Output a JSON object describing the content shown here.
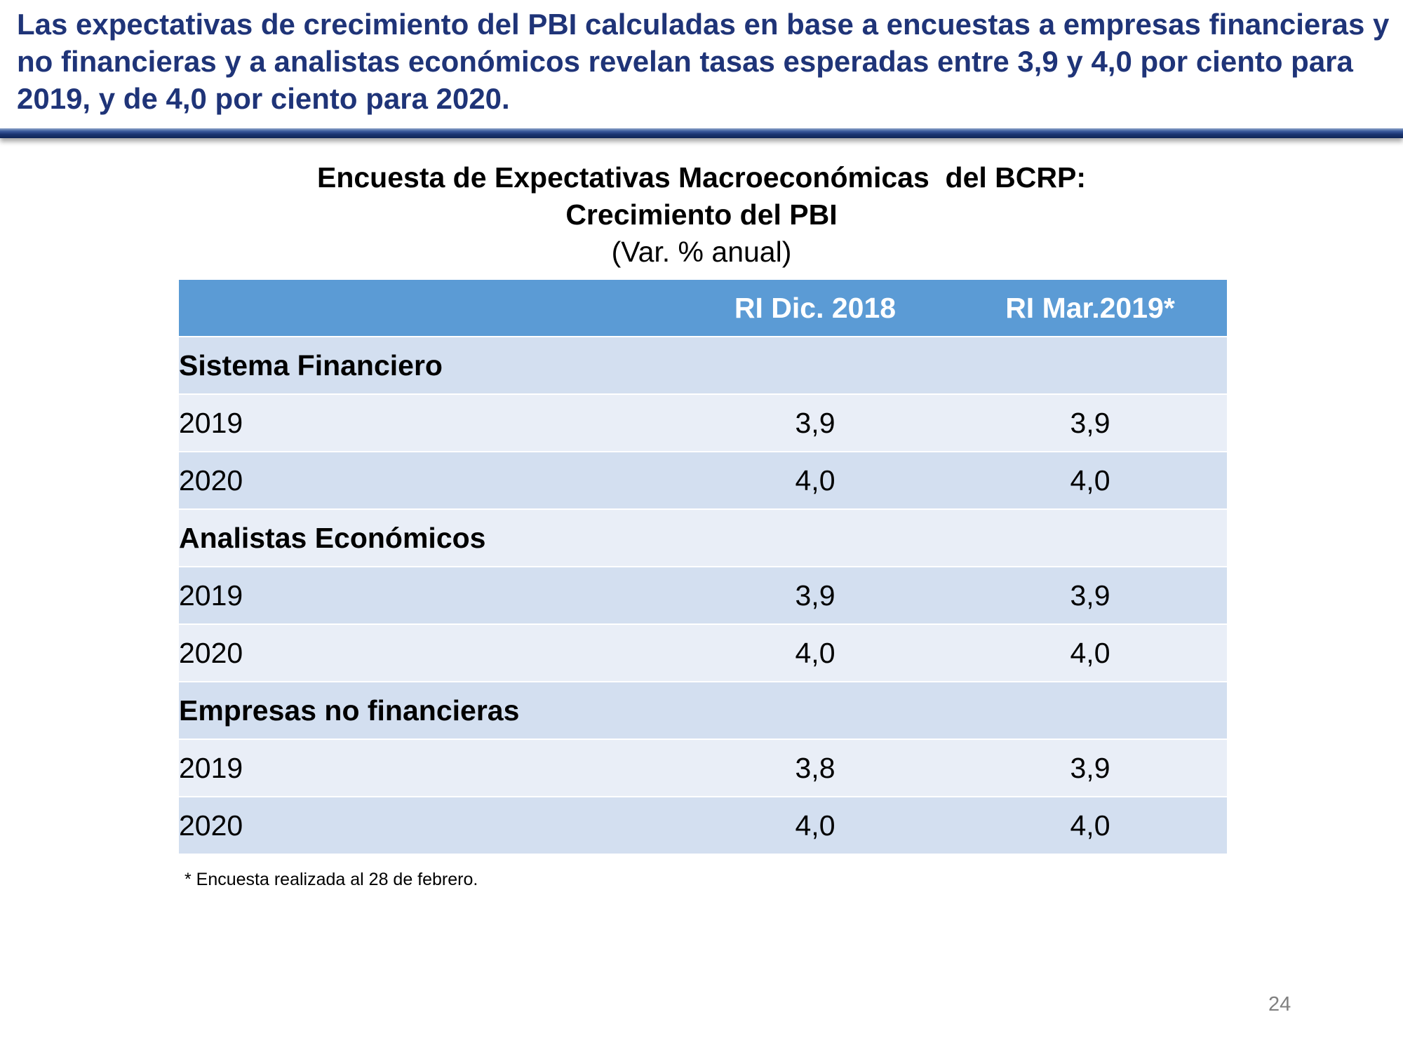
{
  "headline": "Las expectativas de crecimiento del PBI calculadas en base a encuestas a empresas financieras y no financieras y a analistas económicos revelan tasas esperadas entre 3,9 y 4,0 por ciento para 2019, y de 4,0 por ciento para 2020.",
  "table_title": {
    "line1": "Encuesta de Expectativas Macroeconómicas  del BCRP:",
    "line2": "Crecimiento del PBI",
    "subtitle": "(Var. % anual)"
  },
  "table": {
    "columns": [
      "",
      "RI Dic. 2018",
      "RI Mar.2019*"
    ],
    "groups": [
      {
        "name": "Sistema Financiero",
        "rows": [
          {
            "year": "2019",
            "values": [
              "3,9",
              "3,9"
            ]
          },
          {
            "year": "2020",
            "values": [
              "4,0",
              "4,0"
            ]
          }
        ]
      },
      {
        "name": "Analistas Económicos",
        "rows": [
          {
            "year": "2019",
            "values": [
              "3,9",
              "3,9"
            ]
          },
          {
            "year": "2020",
            "values": [
              "4,0",
              "4,0"
            ]
          }
        ]
      },
      {
        "name": "Empresas no financieras",
        "rows": [
          {
            "year": "2019",
            "values": [
              "3,8",
              "3,9"
            ]
          },
          {
            "year": "2020",
            "values": [
              "4,0",
              "4,0"
            ]
          }
        ]
      }
    ]
  },
  "footnote": "* Encuesta realizada al 28 de febrero.",
  "page_number": "24",
  "colors": {
    "headline": "#1f3478",
    "header_fill": "#5b9bd5",
    "row_dark": "#d3dff0",
    "row_light": "#e9eef7",
    "rule": "#1b3572"
  }
}
